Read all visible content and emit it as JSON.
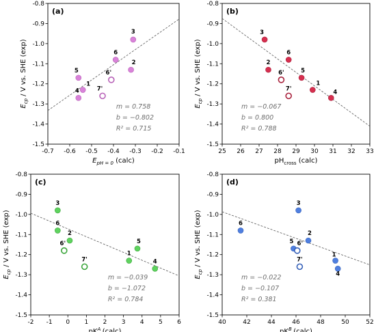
{
  "chart_data": [
    {
      "type": "scatter",
      "panel_label": "(a)",
      "xlabel": "E_pH=0 (calc)",
      "xlabel_main": "E",
      "xlabel_sub": "pH = 0",
      "xlabel_tail": " (calc)",
      "ylabel_main": "E",
      "ylabel_sub": "cp",
      "ylabel_tail": " / V vs. SHE (exp)",
      "xlim": [
        -0.7,
        -0.1
      ],
      "ylim": [
        -1.5,
        -0.8
      ],
      "xticks": [
        "-0.7",
        "-0.6",
        "-0.5",
        "-0.4",
        "-0.3",
        "-0.2",
        "-0.1"
      ],
      "xtick_values": [
        -0.7,
        -0.6,
        -0.5,
        -0.4,
        -0.3,
        -0.2,
        -0.1
      ],
      "yticks": [
        "-1.5",
        "-1.4",
        "-1.3",
        "-1.2",
        "-1.1",
        "-1.0",
        "-0.9",
        "-0.8"
      ],
      "ytick_values": [
        -1.5,
        -1.4,
        -1.3,
        -1.2,
        -1.1,
        -1.0,
        -0.9,
        -0.8
      ],
      "color": "#d983d9",
      "stroke": "#b862b8",
      "fit": {
        "m": 0.758,
        "b": -0.802
      },
      "stats": [
        "m = 0.758",
        "b = −0.802",
        "R² = 0.715"
      ],
      "stats_position": "bottom-right",
      "points": [
        {
          "label": "1",
          "x": -0.54,
          "y": -1.23,
          "filled": true
        },
        {
          "label": "2",
          "x": -0.32,
          "y": -1.13,
          "filled": true
        },
        {
          "label": "3",
          "x": -0.31,
          "y": -0.98,
          "filled": true
        },
        {
          "label": "4",
          "x": -0.56,
          "y": -1.27,
          "filled": true
        },
        {
          "label": "5",
          "x": -0.56,
          "y": -1.17,
          "filled": true
        },
        {
          "label": "6",
          "x": -0.39,
          "y": -1.08,
          "filled": true
        },
        {
          "label": "6'",
          "x": -0.41,
          "y": -1.18,
          "filled": false
        },
        {
          "label": "7'",
          "x": -0.45,
          "y": -1.26,
          "filled": false
        }
      ]
    },
    {
      "type": "scatter",
      "panel_label": "(b)",
      "xlabel": "pH_cross (calc)",
      "xlabel_main": "pH",
      "xlabel_sub": "cross",
      "xlabel_tail": " (calc)",
      "ylabel_main": "E",
      "ylabel_sub": "cp",
      "ylabel_tail": " / V vs. SHE (exp)",
      "xlim": [
        25,
        33
      ],
      "ylim": [
        -1.5,
        -0.8
      ],
      "xticks": [
        "25",
        "26",
        "27",
        "28",
        "29",
        "30",
        "31",
        "32",
        "33"
      ],
      "xtick_values": [
        25,
        26,
        27,
        28,
        29,
        30,
        31,
        32,
        33
      ],
      "yticks": [
        "-1.5",
        "-1.4",
        "-1.3",
        "-1.2",
        "-1.1",
        "-1.0",
        "-0.9",
        "-0.8"
      ],
      "ytick_values": [
        -1.5,
        -1.4,
        -1.3,
        -1.2,
        -1.1,
        -1.0,
        -0.9,
        -0.8
      ],
      "color": "#d62f4f",
      "stroke": "#a8203b",
      "fit": {
        "m": -0.067,
        "b": 0.8
      },
      "stats": [
        "m = −0.067",
        "b = 0.800",
        "R² = 0.788"
      ],
      "stats_position": "bottom-left",
      "points": [
        {
          "label": "1",
          "x": 29.9,
          "y": -1.23,
          "filled": true
        },
        {
          "label": "2",
          "x": 27.5,
          "y": -1.13,
          "filled": true
        },
        {
          "label": "3",
          "x": 27.3,
          "y": -0.98,
          "filled": true
        },
        {
          "label": "4",
          "x": 30.9,
          "y": -1.27,
          "filled": true
        },
        {
          "label": "5",
          "x": 29.3,
          "y": -1.17,
          "filled": true
        },
        {
          "label": "6",
          "x": 28.6,
          "y": -1.08,
          "filled": true
        },
        {
          "label": "6'",
          "x": 28.2,
          "y": -1.18,
          "filled": false
        },
        {
          "label": "7'",
          "x": 28.6,
          "y": -1.26,
          "filled": false
        }
      ]
    },
    {
      "type": "scatter",
      "panel_label": "(c)",
      "xlabel": "pKa^A (calc)",
      "xlabel_main": "pK",
      "xlabel_sup": "A",
      "xlabel_sub": "a",
      "xlabel_tail": " (calc)",
      "ylabel_main": "E",
      "ylabel_sub": "cp",
      "ylabel_tail": " / V vs. SHE (exp)",
      "xlim": [
        -2,
        6
      ],
      "ylim": [
        -1.5,
        -0.8
      ],
      "xticks": [
        "-2",
        "-1",
        "0",
        "1",
        "2",
        "3",
        "4",
        "5",
        "6"
      ],
      "xtick_values": [
        -2,
        -1,
        0,
        1,
        2,
        3,
        4,
        5,
        6
      ],
      "yticks": [
        "-1.5",
        "-1.4",
        "-1.3",
        "-1.2",
        "-1.1",
        "-1.0",
        "-0.9",
        "-0.8"
      ],
      "ytick_values": [
        -1.5,
        -1.4,
        -1.3,
        -1.2,
        -1.1,
        -1.0,
        -0.9,
        -0.8
      ],
      "color": "#5fd35f",
      "stroke": "#3aa53a",
      "fit": {
        "m": -0.039,
        "b": -1.072
      },
      "stats": [
        "m = −0.039",
        "b = −1.072",
        "R² = 0.784"
      ],
      "stats_position": "bottom-right",
      "points": [
        {
          "label": "1",
          "x": 3.3,
          "y": -1.23,
          "filled": true
        },
        {
          "label": "2",
          "x": 0.1,
          "y": -1.13,
          "filled": true
        },
        {
          "label": "3",
          "x": -0.55,
          "y": -0.98,
          "filled": true
        },
        {
          "label": "4",
          "x": 4.7,
          "y": -1.27,
          "filled": true
        },
        {
          "label": "5",
          "x": 3.75,
          "y": -1.17,
          "filled": true
        },
        {
          "label": "6",
          "x": -0.55,
          "y": -1.08,
          "filled": true
        },
        {
          "label": "6'",
          "x": -0.2,
          "y": -1.18,
          "filled": false
        },
        {
          "label": "7'",
          "x": 0.9,
          "y": -1.26,
          "filled": false
        }
      ]
    },
    {
      "type": "scatter",
      "panel_label": "(d)",
      "xlabel": "pKa^B (calc)",
      "xlabel_main": "pK",
      "xlabel_sup": "B",
      "xlabel_sub": "a",
      "xlabel_tail": " (calc)",
      "ylabel_main": "E",
      "ylabel_sub": "cp",
      "ylabel_tail": " / V vs. SHE (exp)",
      "xlim": [
        40,
        52
      ],
      "ylim": [
        -1.5,
        -0.8
      ],
      "xticks": [
        "40",
        "42",
        "44",
        "46",
        "48",
        "50",
        "52"
      ],
      "xtick_values": [
        40,
        42,
        44,
        46,
        48,
        50,
        52
      ],
      "yticks": [
        "-1.5",
        "-1.4",
        "-1.3",
        "-1.2",
        "-1.1",
        "-1.0",
        "-0.9",
        "-0.8"
      ],
      "ytick_values": [
        -1.5,
        -1.4,
        -1.3,
        -1.2,
        -1.1,
        -1.0,
        -0.9,
        -0.8
      ],
      "color": "#4f7fe0",
      "stroke": "#3560b8",
      "fit": {
        "m": -0.022,
        "b": -0.107
      },
      "stats": [
        "m = −0.022",
        "b = −0.107",
        "R² = 0.381"
      ],
      "stats_position": "bottom-left",
      "points": [
        {
          "label": "1",
          "x": 49.2,
          "y": -1.23,
          "filled": true
        },
        {
          "label": "2",
          "x": 47.0,
          "y": -1.13,
          "filled": true
        },
        {
          "label": "3",
          "x": 46.2,
          "y": -0.98,
          "filled": true
        },
        {
          "label": "4",
          "x": 49.4,
          "y": -1.27,
          "filled": true
        },
        {
          "label": "5",
          "x": 45.8,
          "y": -1.17,
          "filled": true
        },
        {
          "label": "6",
          "x": 41.5,
          "y": -1.08,
          "filled": true
        },
        {
          "label": "6'",
          "x": 46.1,
          "y": -1.18,
          "filled": false
        },
        {
          "label": "7'",
          "x": 46.3,
          "y": -1.26,
          "filled": false
        }
      ]
    }
  ]
}
